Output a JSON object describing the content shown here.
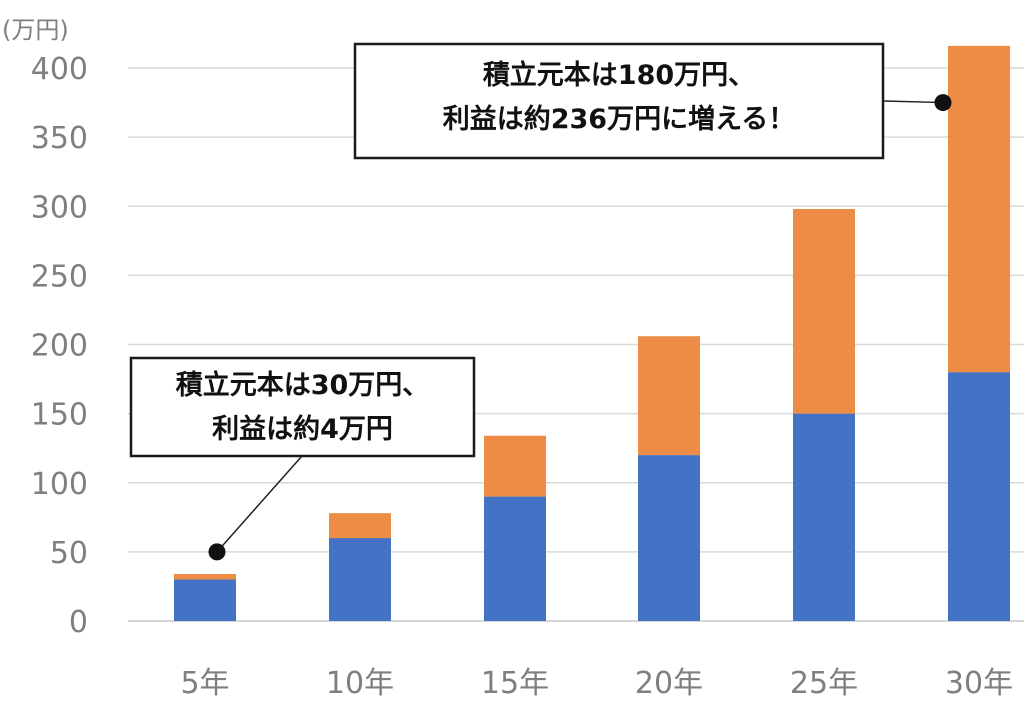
{
  "chart_data": {
    "type": "bar",
    "stacked": true,
    "unit_label": "(万円)",
    "categories": [
      "5年",
      "10年",
      "15年",
      "20年",
      "25年",
      "30年"
    ],
    "series": [
      {
        "values": [
          30,
          60,
          90,
          120,
          150,
          180
        ],
        "color": "#4472c4"
      },
      {
        "values": [
          4,
          18,
          44,
          86,
          148,
          236
        ],
        "color": "#ed8d45"
      }
    ],
    "ylim": [
      0,
      400
    ],
    "yticks": [
      0,
      50,
      100,
      150,
      200,
      250,
      300,
      350,
      400
    ],
    "grid": true,
    "annotations": [
      {
        "lines": [
          "積立元本は30万円、",
          "利益は約4万円"
        ],
        "category": "5年",
        "value": 50
      },
      {
        "lines": [
          "積立元本は180万円、",
          "利益は約236万円に増える！"
        ],
        "category": "30年",
        "value": 375
      }
    ]
  }
}
